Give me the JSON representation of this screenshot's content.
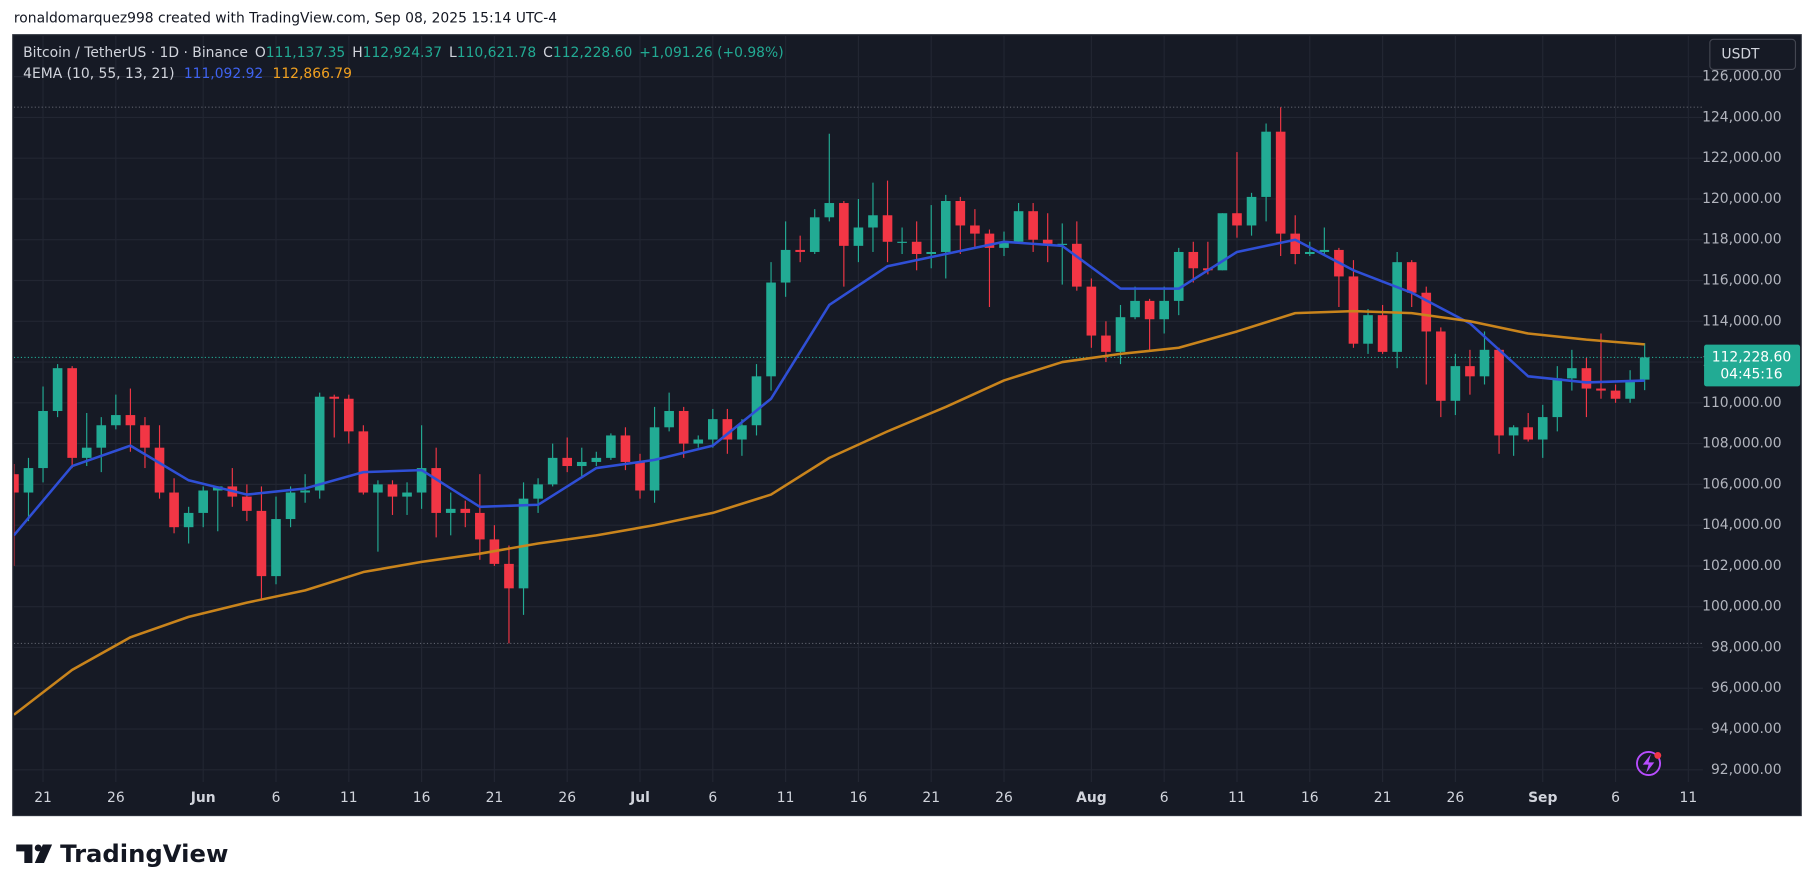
{
  "header": "ronaldomarquez998 created with TradingView.com, Sep 08, 2025 15:14 UTC-4",
  "footer": {
    "brand": "TradingView"
  },
  "chart_data": {
    "type": "candlestick",
    "x": [
      "2025-05-19",
      "2025-05-20",
      "2025-05-21",
      "2025-05-22",
      "2025-05-23",
      "2025-05-24",
      "2025-05-25",
      "2025-05-26",
      "2025-05-27",
      "2025-05-28",
      "2025-05-29",
      "2025-05-30",
      "2025-05-31",
      "2025-06-01",
      "2025-06-02",
      "2025-06-03",
      "2025-06-04",
      "2025-06-05",
      "2025-06-06",
      "2025-06-07",
      "2025-06-08",
      "2025-06-09",
      "2025-06-10",
      "2025-06-11",
      "2025-06-12",
      "2025-06-13",
      "2025-06-14",
      "2025-06-15",
      "2025-06-16",
      "2025-06-17",
      "2025-06-18",
      "2025-06-19",
      "2025-06-20",
      "2025-06-21",
      "2025-06-22",
      "2025-06-23",
      "2025-06-24",
      "2025-06-25",
      "2025-06-26",
      "2025-06-27",
      "2025-06-28",
      "2025-06-29",
      "2025-06-30",
      "2025-07-01",
      "2025-07-02",
      "2025-07-03",
      "2025-07-04",
      "2025-07-05",
      "2025-07-06",
      "2025-07-07",
      "2025-07-08",
      "2025-07-09",
      "2025-07-10",
      "2025-07-11",
      "2025-07-12",
      "2025-07-13",
      "2025-07-14",
      "2025-07-15",
      "2025-07-16",
      "2025-07-17",
      "2025-07-18",
      "2025-07-19",
      "2025-07-20",
      "2025-07-21",
      "2025-07-22",
      "2025-07-23",
      "2025-07-24",
      "2025-07-25",
      "2025-07-26",
      "2025-07-27",
      "2025-07-28",
      "2025-07-29",
      "2025-07-30",
      "2025-07-31",
      "2025-08-01",
      "2025-08-02",
      "2025-08-03",
      "2025-08-04",
      "2025-08-05",
      "2025-08-06",
      "2025-08-07",
      "2025-08-08",
      "2025-08-09",
      "2025-08-10",
      "2025-08-11",
      "2025-08-12",
      "2025-08-13",
      "2025-08-14",
      "2025-08-15",
      "2025-08-16",
      "2025-08-17",
      "2025-08-18",
      "2025-08-19",
      "2025-08-20",
      "2025-08-21",
      "2025-08-22",
      "2025-08-23",
      "2025-08-24",
      "2025-08-25",
      "2025-08-26",
      "2025-08-27",
      "2025-08-28",
      "2025-08-29",
      "2025-08-30",
      "2025-08-31",
      "2025-09-01",
      "2025-09-02",
      "2025-09-03",
      "2025-09-04",
      "2025-09-05",
      "2025-09-06",
      "2025-09-07",
      "2025-09-08"
    ],
    "open": [
      106500,
      105600,
      106800,
      109600,
      111700,
      107300,
      107800,
      108900,
      109400,
      108900,
      107800,
      105600,
      103900,
      104600,
      105700,
      105900,
      105400,
      104700,
      101500,
      104300,
      105600,
      105700,
      110300,
      110200,
      108600,
      105600,
      106000,
      105400,
      105600,
      106800,
      104600,
      104800,
      104600,
      103300,
      102100,
      100900,
      105300,
      106000,
      107300,
      106900,
      107100,
      107300,
      108400,
      107100,
      105700,
      108800,
      109600,
      108000,
      108200,
      109200,
      108200,
      108900,
      111300,
      115900,
      117500,
      117400,
      119100,
      119800,
      117700,
      118600,
      119200,
      117900,
      117900,
      117300,
      117400,
      119900,
      118700,
      118300,
      117600,
      117900,
      119400,
      118000,
      117800,
      117800,
      115700,
      113300,
      112500,
      114200,
      115000,
      114100,
      115000,
      117400,
      116600,
      116500,
      119300,
      118700,
      120100,
      123300,
      118300,
      117300,
      117400,
      117500,
      116200,
      112900,
      114300,
      112500,
      116900,
      115400,
      113500,
      110100,
      111800,
      111300,
      112600,
      108400,
      108800,
      108200,
      109300,
      111200,
      111700,
      110700,
      110600,
      110200,
      111137.35
    ],
    "high": [
      107000,
      107300,
      110800,
      111900,
      111800,
      109500,
      109300,
      110400,
      110700,
      109300,
      108900,
      106300,
      104900,
      105900,
      105900,
      106800,
      106000,
      105900,
      105400,
      105900,
      106500,
      110500,
      110400,
      110400,
      108900,
      106200,
      106200,
      106100,
      108900,
      107800,
      105600,
      105200,
      106500,
      104000,
      103000,
      106100,
      106300,
      108000,
      108300,
      107800,
      107600,
      108500,
      108800,
      107500,
      109800,
      110500,
      109800,
      108400,
      109700,
      109700,
      109200,
      111900,
      116900,
      118900,
      118200,
      119500,
      123200,
      119900,
      120000,
      120800,
      120900,
      118600,
      118900,
      119700,
      120200,
      120100,
      119500,
      118500,
      118400,
      119800,
      119800,
      119300,
      118800,
      118900,
      116100,
      114000,
      114800,
      115700,
      115100,
      115700,
      117600,
      117900,
      117900,
      119300,
      122300,
      120300,
      123700,
      124500,
      119200,
      117900,
      118600,
      117600,
      117000,
      114600,
      114800,
      117400,
      117000,
      115700,
      113700,
      112400,
      112600,
      113500,
      112700,
      108900,
      109500,
      109900,
      111800,
      112600,
      112200,
      113400,
      110900,
      111600,
      112924.37
    ],
    "low": [
      102000,
      104200,
      106100,
      109300,
      106800,
      106900,
      106600,
      108700,
      107600,
      106800,
      105300,
      103600,
      103100,
      103900,
      103700,
      104900,
      104200,
      100400,
      101100,
      103900,
      105100,
      105300,
      108300,
      108000,
      105500,
      102700,
      104500,
      104500,
      104800,
      103400,
      103500,
      103900,
      102300,
      102000,
      98200,
      99600,
      104600,
      105900,
      106600,
      106400,
      106900,
      107200,
      106700,
      105300,
      105100,
      108600,
      107300,
      107800,
      107800,
      107500,
      107400,
      108400,
      110600,
      115200,
      116900,
      117300,
      118900,
      115700,
      116900,
      117400,
      116900,
      117300,
      116500,
      116600,
      116100,
      117300,
      117600,
      114700,
      117200,
      117800,
      117400,
      116900,
      115800,
      115500,
      112700,
      112000,
      111900,
      114100,
      112600,
      113400,
      114300,
      115900,
      116300,
      116500,
      118100,
      118200,
      118900,
      117200,
      116800,
      117200,
      117300,
      114700,
      112700,
      112400,
      112400,
      111700,
      114700,
      110900,
      109300,
      109400,
      110400,
      110900,
      107500,
      107400,
      108100,
      107300,
      108600,
      110600,
      109300,
      110200,
      110000,
      110000,
      110621.78
    ],
    "close": [
      105600,
      106800,
      109600,
      111700,
      107300,
      107800,
      108900,
      109400,
      108900,
      107800,
      105600,
      103900,
      104600,
      105700,
      105900,
      105400,
      104700,
      101500,
      104300,
      105600,
      105700,
      110300,
      110200,
      108600,
      105600,
      106000,
      105400,
      105600,
      106800,
      104600,
      104800,
      104600,
      103300,
      102100,
      100900,
      105300,
      106000,
      107300,
      106900,
      107100,
      107300,
      108400,
      107100,
      105700,
      108800,
      109600,
      108000,
      108200,
      109200,
      108200,
      108900,
      111300,
      115900,
      117500,
      117400,
      119100,
      119800,
      117700,
      118600,
      119200,
      117900,
      117900,
      117300,
      117400,
      119900,
      118700,
      118300,
      117600,
      117900,
      119400,
      118000,
      117800,
      117800,
      115700,
      113300,
      112500,
      114200,
      115000,
      114100,
      115000,
      117400,
      116600,
      116500,
      119300,
      118700,
      120100,
      123300,
      118300,
      117300,
      117400,
      117500,
      116200,
      112900,
      114300,
      112500,
      116900,
      115400,
      113500,
      110100,
      111800,
      111300,
      112600,
      108400,
      108800,
      108200,
      109300,
      111200,
      111700,
      110700,
      110600,
      110200,
      111100,
      112228.6
    ],
    "up_color": "#22ab94",
    "down_color": "#f23645",
    "lines": [
      {
        "color": "#2f4fd6",
        "x": [
          "2025-05-19",
          "2025-05-23",
          "2025-05-27",
          "2025-05-31",
          "2025-06-04",
          "2025-06-08",
          "2025-06-12",
          "2025-06-16",
          "2025-06-20",
          "2025-06-24",
          "2025-06-28",
          "2025-07-02",
          "2025-07-06",
          "2025-07-10",
          "2025-07-14",
          "2025-07-18",
          "2025-07-22",
          "2025-07-26",
          "2025-07-30",
          "2025-08-03",
          "2025-08-07",
          "2025-08-11",
          "2025-08-15",
          "2025-08-19",
          "2025-08-23",
          "2025-08-27",
          "2025-08-31",
          "2025-09-04",
          "2025-09-08"
        ],
        "values": [
          103500,
          106900,
          107900,
          106200,
          105500,
          105800,
          106600,
          106700,
          104900,
          105000,
          106800,
          107200,
          107900,
          110200,
          114800,
          116700,
          117300,
          117900,
          117700,
          115600,
          115600,
          117400,
          118000,
          116500,
          115400,
          113900,
          111300,
          111000,
          111092.92
        ]
      },
      {
        "color": "#c9841c",
        "x": [
          "2025-05-19",
          "2025-05-23",
          "2025-05-27",
          "2025-05-31",
          "2025-06-04",
          "2025-06-08",
          "2025-06-12",
          "2025-06-16",
          "2025-06-20",
          "2025-06-24",
          "2025-06-28",
          "2025-07-02",
          "2025-07-06",
          "2025-07-10",
          "2025-07-14",
          "2025-07-18",
          "2025-07-22",
          "2025-07-26",
          "2025-07-30",
          "2025-08-03",
          "2025-08-07",
          "2025-08-11",
          "2025-08-15",
          "2025-08-19",
          "2025-08-23",
          "2025-08-27",
          "2025-08-31",
          "2025-09-04",
          "2025-09-08"
        ],
        "values": [
          94700,
          96900,
          98500,
          99500,
          100200,
          100800,
          101700,
          102200,
          102600,
          103100,
          103500,
          104000,
          104600,
          105500,
          107300,
          108600,
          109800,
          111100,
          112000,
          112400,
          112700,
          113500,
          114400,
          114500,
          114400,
          114000,
          113400,
          113100,
          112866.79
        ]
      }
    ],
    "xlim": [
      "2025-05-19",
      "2025-09-12"
    ],
    "ylim": [
      91400,
      128000
    ],
    "grid": true,
    "xticks": [
      {
        "value": "2025-05-21",
        "label": "21"
      },
      {
        "value": "2025-05-26",
        "label": "26"
      },
      {
        "value": "2025-06-01",
        "label": "Jun"
      },
      {
        "value": "2025-06-06",
        "label": "6"
      },
      {
        "value": "2025-06-11",
        "label": "11"
      },
      {
        "value": "2025-06-16",
        "label": "16"
      },
      {
        "value": "2025-06-21",
        "label": "21"
      },
      {
        "value": "2025-06-26",
        "label": "26"
      },
      {
        "value": "2025-07-01",
        "label": "Jul"
      },
      {
        "value": "2025-07-06",
        "label": "6"
      },
      {
        "value": "2025-07-11",
        "label": "11"
      },
      {
        "value": "2025-07-16",
        "label": "16"
      },
      {
        "value": "2025-07-21",
        "label": "21"
      },
      {
        "value": "2025-07-26",
        "label": "26"
      },
      {
        "value": "2025-08-01",
        "label": "Aug"
      },
      {
        "value": "2025-08-06",
        "label": "6"
      },
      {
        "value": "2025-08-11",
        "label": "11"
      },
      {
        "value": "2025-08-16",
        "label": "16"
      },
      {
        "value": "2025-08-21",
        "label": "21"
      },
      {
        "value": "2025-08-26",
        "label": "26"
      },
      {
        "value": "2025-09-01",
        "label": "Sep"
      },
      {
        "value": "2025-09-06",
        "label": "6"
      },
      {
        "value": "2025-09-11",
        "label": "11"
      }
    ],
    "yticks": [
      {
        "value": 92000,
        "label": "92,000.00"
      },
      {
        "value": 94000,
        "label": "94,000.00"
      },
      {
        "value": 96000,
        "label": "96,000.00"
      },
      {
        "value": 98000,
        "label": "98,000.00"
      },
      {
        "value": 100000,
        "label": "100,000.00"
      },
      {
        "value": 102000,
        "label": "102,000.00"
      },
      {
        "value": 104000,
        "label": "104,000.00"
      },
      {
        "value": 106000,
        "label": "106,000.00"
      },
      {
        "value": 108000,
        "label": "108,000.00"
      },
      {
        "value": 110000,
        "label": "110,000.00"
      },
      {
        "value": 112000,
        "label": "112,000.00"
      },
      {
        "value": 114000,
        "label": "114,000.00"
      },
      {
        "value": 116000,
        "label": "116,000.00"
      },
      {
        "value": 118000,
        "label": "118,000.00"
      },
      {
        "value": 120000,
        "label": "120,000.00"
      },
      {
        "value": 122000,
        "label": "122,000.00"
      },
      {
        "value": 124000,
        "label": "124,000.00"
      },
      {
        "value": 126000,
        "label": "126,000.00"
      }
    ],
    "last_price_label": "112,228.60",
    "countdown": "04:45:16",
    "quote_currency": "USDT",
    "legend": {
      "symbol": "Bitcoin / TetherUS · 1D · Binance",
      "ohlc": [
        {
          "key": "O",
          "value": "111,137.35"
        },
        {
          "key": "H",
          "value": "112,924.37"
        },
        {
          "key": "L",
          "value": "110,621.78"
        },
        {
          "key": "C",
          "value": "112,228.60"
        }
      ],
      "change": "+1,091.26 (+0.98%)",
      "indicator": "4EMA (10, 55, 13, 21)",
      "indicator_values": [
        "111,092.92",
        "112,866.79"
      ]
    }
  }
}
